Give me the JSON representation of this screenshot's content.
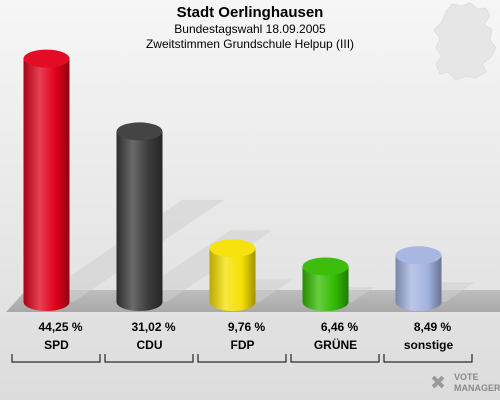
{
  "header": {
    "title": "Stadt Oerlinghausen",
    "subtitle": "Bundestagswahl 18.09.2005",
    "subtitle2": "Zweitstimmen Grundschule Helpup (III)"
  },
  "logo": {
    "line1": "VOTE",
    "line2": "MANAGER",
    "icon": "vote-manager-logo"
  },
  "chart_data": {
    "type": "bar",
    "title": "Stadt Oerlinghausen",
    "subtitle": "Bundestagswahl 18.09.2005 / Zweitstimmen Grundschule Helpup (III)",
    "categories": [
      "SPD",
      "CDU",
      "FDP",
      "GRÜNE",
      "sonstige"
    ],
    "values": [
      44.25,
      31.02,
      9.76,
      6.46,
      8.49
    ],
    "value_labels": [
      "44,25 %",
      "31,02 %",
      "9,76 %",
      "6,46 %",
      "8,49 %"
    ],
    "colors": [
      "#e0001a",
      "#3a3a3a",
      "#f5e000",
      "#33bb00",
      "#a3b3df"
    ],
    "unit": "%",
    "ylim": [
      0,
      50
    ],
    "grid": false,
    "legend": "none"
  }
}
